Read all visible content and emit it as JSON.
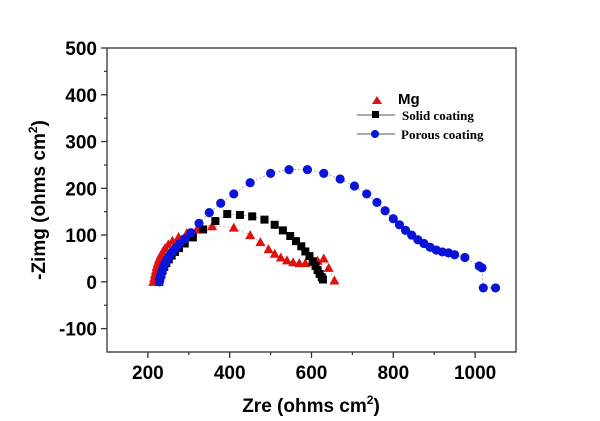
{
  "chart_data": {
    "type": "scatter",
    "title": "",
    "xlabel": "Zre (ohms cm",
    "xlabel_sup": "2",
    "xlabel_close": ")",
    "ylabel": "-Zimg (ohms cm",
    "ylabel_sup": "2",
    "ylabel_close": ")",
    "xlim": [
      100,
      1100
    ],
    "ylim": [
      -150,
      500
    ],
    "xticks": [
      200,
      400,
      600,
      800,
      1000
    ],
    "xminor": [
      300,
      500,
      700,
      900
    ],
    "yticks": [
      -100,
      0,
      100,
      200,
      300,
      400,
      500
    ],
    "yminor": [
      -50,
      50,
      150,
      250,
      350,
      450
    ],
    "grid": false,
    "legend_position": "top-center",
    "series": [
      {
        "name": "Mg",
        "marker": "triangle",
        "color": "#e01010",
        "line": false,
        "x": [
          213,
          215,
          217,
          219,
          221,
          224,
          227,
          231,
          236,
          242,
          250,
          260,
          275,
          295,
          320,
          357,
          410,
          450,
          475,
          495,
          510,
          525,
          540,
          555,
          570,
          585,
          600,
          615,
          630,
          642,
          656
        ],
        "y": [
          0,
          8,
          16,
          24,
          32,
          40,
          48,
          56,
          64,
          72,
          80,
          88,
          96,
          104,
          112,
          119,
          116,
          100,
          85,
          70,
          60,
          52,
          46,
          42,
          40,
          40,
          42,
          45,
          50,
          30,
          3
        ]
      },
      {
        "name": "Solid coating",
        "marker": "square",
        "color": "#000000",
        "line": true,
        "x": [
          228,
          230,
          233,
          236,
          240,
          245,
          251,
          258,
          266,
          276,
          290,
          310,
          335,
          365,
          394,
          425,
          455,
          485,
          510,
          530,
          548,
          562,
          575,
          585,
          595,
          603,
          610,
          615,
          620,
          625,
          628
        ],
        "y": [
          0,
          8,
          16,
          24,
          32,
          40,
          48,
          56,
          64,
          72,
          82,
          95,
          112,
          130,
          145,
          143,
          140,
          133,
          122,
          110,
          98,
          87,
          76,
          65,
          55,
          44,
          34,
          25,
          17,
          10,
          5
        ]
      },
      {
        "name": "Porous coating",
        "marker": "circle",
        "color": "#0a14d8",
        "line": true,
        "x": [
          228,
          230,
          232,
          235,
          238,
          242,
          247,
          253,
          260,
          268,
          278,
          290,
          305,
          325,
          350,
          378,
          410,
          450,
          500,
          545,
          590,
          630,
          670,
          705,
          735,
          760,
          780,
          800,
          815,
          830,
          845,
          860,
          875,
          890,
          905,
          920,
          935,
          950,
          975,
          1010,
          1017,
          1020,
          1050
        ],
        "y": [
          0,
          8,
          16,
          24,
          32,
          40,
          48,
          56,
          64,
          72,
          82,
          92,
          105,
          125,
          148,
          168,
          188,
          212,
          232,
          240,
          240,
          232,
          220,
          205,
          188,
          170,
          152,
          135,
          122,
          110,
          100,
          90,
          82,
          74,
          68,
          64,
          62,
          58,
          52,
          34,
          30,
          -13,
          -13
        ]
      }
    ]
  }
}
